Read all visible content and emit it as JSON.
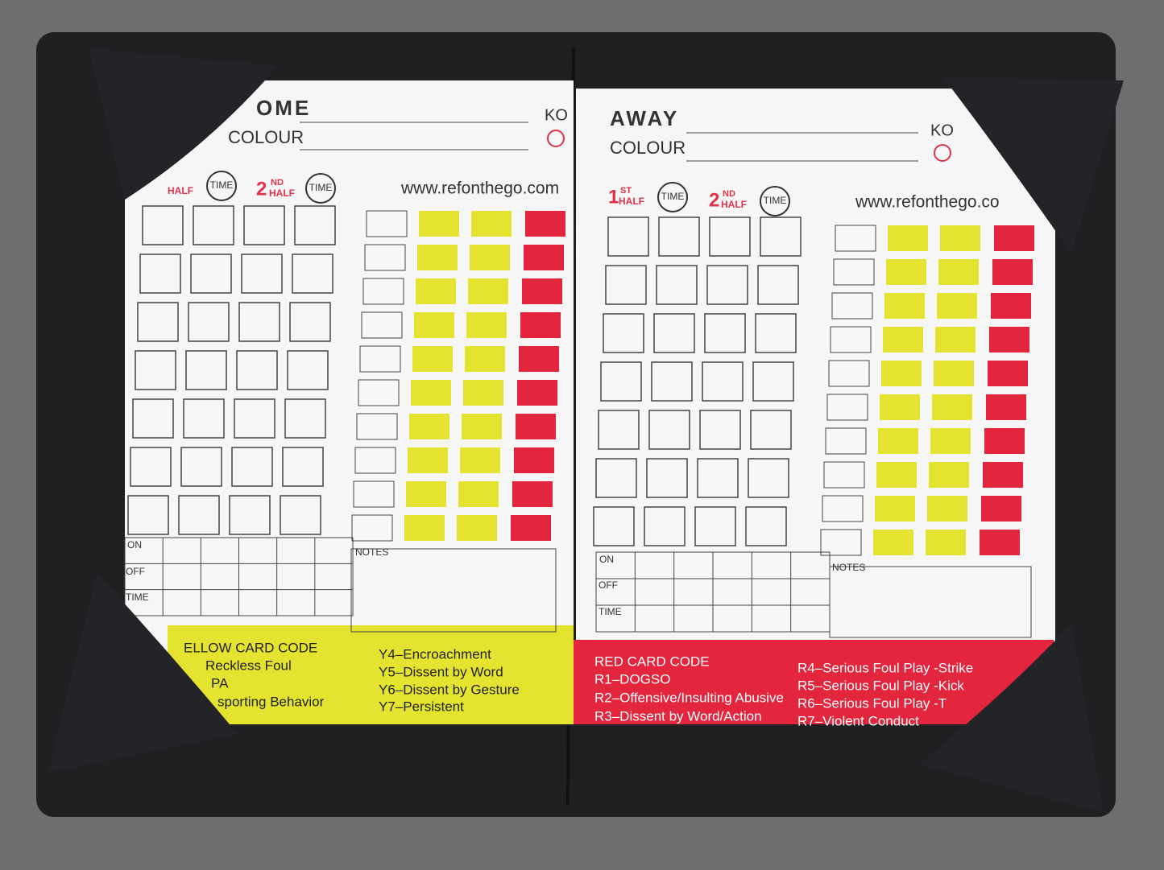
{
  "left_card": {
    "title": "OME",
    "colour_label": "COLOUR",
    "ko": "KO",
    "first_half": "HALF",
    "time_1": "TIME",
    "second_half_num": "2",
    "second_half_sup": "ND",
    "second_half_word": "HALF",
    "time_2": "TIME",
    "website": "www.refonthego.com",
    "on": "ON",
    "off": "OFF",
    "time_row": "TIME",
    "notes": "NOTES",
    "code_title": "ELLOW CARD CODE",
    "codes": [
      "Reckless Foul",
      "PA",
      "sporting Behavior",
      "Y4–Encroachment",
      "Y5–Dissent by Word",
      "Y6–Dissent by Gesture",
      "Y7–Persistent"
    ]
  },
  "right_card": {
    "title": "AWAY",
    "colour_label": "COLOUR",
    "ko": "KO",
    "first_half_num": "1",
    "first_half_sup": "ST",
    "first_half_word": "HALF",
    "time_1": "TIME",
    "second_half_num": "2",
    "second_half_sup": "ND",
    "second_half_word": "HALF",
    "time_2": "TIME",
    "website": "www.refonthego.co",
    "on": "ON",
    "off": "OFF",
    "time_row": "TIME",
    "notes": "NOTES",
    "code_title": "RED CARD CODE",
    "codes": [
      "R1–DOGSO",
      "R2–Offensive/Insulting Abusive",
      "R3–Dissent by Word/Action",
      "R4–Serious Foul Play -Strike",
      "R5–Serious Foul Play -Kick",
      "R6–Serious Foul Play -T",
      "R7–Violent Conduct"
    ]
  }
}
